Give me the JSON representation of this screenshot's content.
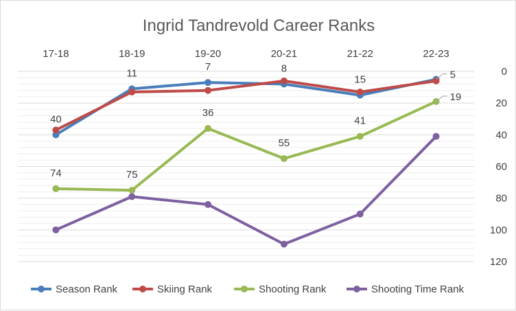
{
  "chart_data": {
    "type": "line",
    "title": "Ingrid Tandrevold Career Ranks",
    "categories": [
      "17-18",
      "18-19",
      "19-20",
      "20-21",
      "21-22",
      "22-23"
    ],
    "y_axis": {
      "reversed": true,
      "ylim": [
        0,
        120
      ],
      "ticks": [
        0,
        20,
        40,
        60,
        80,
        100,
        120
      ],
      "position": "right"
    },
    "x_axis_position": "top",
    "grid": true,
    "legend_position": "bottom",
    "series": [
      {
        "name": "Season Rank",
        "color": "#4a7ebb",
        "values": [
          40,
          11,
          7,
          8,
          15,
          5
        ],
        "labels": [
          "40",
          "11",
          "7",
          "8",
          "15",
          "5"
        ]
      },
      {
        "name": "Skiing Rank",
        "color": "#be4b48",
        "values": [
          37,
          13,
          12,
          6,
          13,
          6
        ],
        "labels": []
      },
      {
        "name": "Shooting Rank",
        "color": "#98b954",
        "values": [
          74,
          75,
          36,
          55,
          41,
          19
        ],
        "labels": [
          "74",
          "75",
          "36",
          "55",
          "41",
          "19"
        ]
      },
      {
        "name": "Shooting Time Rank",
        "color": "#7d60a0",
        "values": [
          100,
          79,
          84,
          109,
          90,
          41
        ],
        "labels": []
      }
    ]
  }
}
